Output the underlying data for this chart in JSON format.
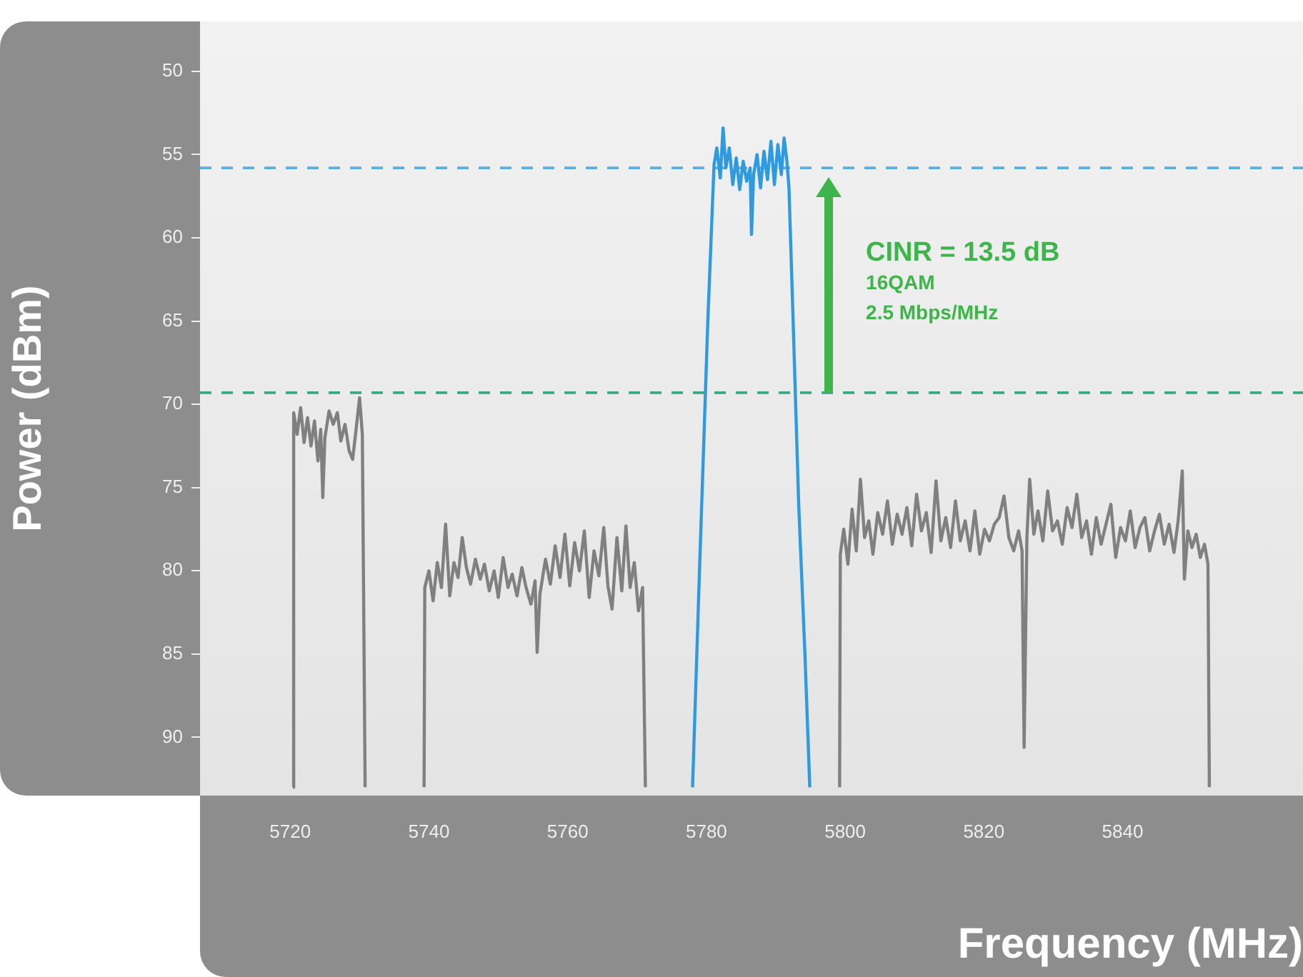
{
  "chart_data": {
    "type": "line",
    "xlabel": "Frequency (MHz)",
    "ylabel": "Power (dBm)",
    "xlim": [
      5707,
      5866
    ],
    "xticks": [
      5720,
      5740,
      5760,
      5780,
      5800,
      5820,
      5840
    ],
    "ylim": [
      93.5,
      47
    ],
    "yticks": [
      50,
      55,
      60,
      65,
      70,
      75,
      80,
      85,
      90
    ],
    "grid": false,
    "legend": false,
    "marker": "none",
    "line_style": "solid",
    "ref_lines": [
      {
        "axis": "y",
        "value": 55.8,
        "color": "#5aaee0",
        "line_style": "dashed",
        "label": null
      },
      {
        "axis": "y",
        "value": 69.3,
        "color": "#3aa882",
        "line_style": "dashed",
        "label": null
      }
    ],
    "annotations": [
      "CINR = 13.5 dB",
      "16QAM",
      "2.5 Mbps/MHz"
    ],
    "series": [
      {
        "color": "#808080",
        "x": [
          5720.4,
          5720.5,
          5721,
          5721.5,
          5722,
          5722.5,
          5723,
          5723.5,
          5724,
          5724.4,
          5724.7,
          5725,
          5725.6,
          5726.2,
          5726.8,
          5727.3,
          5727.9,
          5728.5,
          5729,
          5729.5,
          5730,
          5730.4,
          5730.8,
          5735,
          5739.3,
          5739.4,
          5740,
          5740.6,
          5741.2,
          5741.8,
          5742.4,
          5743,
          5743.6,
          5744.2,
          5744.8,
          5745.4,
          5746,
          5746.7,
          5747.4,
          5748,
          5748.7,
          5749.4,
          5750,
          5750.7,
          5751.4,
          5752,
          5752.7,
          5753.4,
          5754,
          5754.7,
          5755.3,
          5755.6,
          5756,
          5756.8,
          5757.5,
          5758.2,
          5758.9,
          5759.6,
          5760.3,
          5761,
          5761.7,
          5762.4,
          5763.1,
          5763.8,
          5764.5,
          5765.2,
          5765.8,
          5766.4,
          5767.1,
          5767.8,
          5768.4,
          5769,
          5769.6,
          5770.2,
          5770.8,
          5771.2,
          5785,
          5799.2,
          5799.3,
          5799.8,
          5800.4,
          5801,
          5801.6,
          5802.2,
          5802.8,
          5803.4,
          5804,
          5804.7,
          5805.4,
          5806.1,
          5806.8,
          5807.5,
          5808.2,
          5808.9,
          5809.6,
          5810.3,
          5811,
          5811.7,
          5812.4,
          5813.1,
          5813.8,
          5814.5,
          5815.2,
          5815.9,
          5816.6,
          5817.3,
          5818,
          5818.7,
          5819.4,
          5820.1,
          5820.8,
          5821.5,
          5822.2,
          5822.9,
          5823.6,
          5824.3,
          5825,
          5825.5,
          5825.8,
          5826.2,
          5826.6,
          5827.2,
          5827.8,
          5828.5,
          5829.2,
          5829.9,
          5830.6,
          5831.3,
          5832,
          5832.7,
          5833.4,
          5834.1,
          5834.8,
          5835.5,
          5836.2,
          5836.9,
          5837.6,
          5838.3,
          5839,
          5839.7,
          5840.4,
          5841.1,
          5841.8,
          5842.5,
          5843.2,
          5843.9,
          5844.6,
          5845.3,
          5846,
          5846.7,
          5847.4,
          5848,
          5848.6,
          5848.9,
          5849.4,
          5850,
          5850.6,
          5851.2,
          5851.8,
          5852.3,
          5852.5
        ],
        "values": [
          93,
          70.5,
          71.8,
          70.2,
          72.3,
          70.8,
          72.5,
          71,
          73.4,
          71.5,
          75.6,
          72,
          70.4,
          71.2,
          70.5,
          72.2,
          71.2,
          72.8,
          73.3,
          71.5,
          69.6,
          71.8,
          93,
          null,
          93,
          81,
          80,
          81.8,
          79.5,
          81,
          77.2,
          81.5,
          79.5,
          80.4,
          78,
          79.8,
          80.8,
          79.3,
          80.5,
          79.6,
          81.2,
          80,
          81.6,
          79.2,
          81,
          80.2,
          81.5,
          79.8,
          81,
          82,
          80.6,
          84.9,
          81.4,
          79.3,
          80.8,
          78.5,
          80.4,
          77.8,
          80.9,
          78.3,
          80,
          77.6,
          81.6,
          78.8,
          80.3,
          77.4,
          80.9,
          82.3,
          78,
          81.2,
          77.3,
          81,
          79.5,
          82.4,
          81,
          93,
          null,
          93,
          79,
          77.5,
          79.6,
          76.3,
          78.8,
          74.5,
          78,
          77,
          79,
          76.5,
          77.8,
          75.8,
          78.4,
          76.6,
          77.8,
          76.2,
          78.5,
          75.4,
          77.6,
          76.5,
          78.9,
          74.6,
          78.2,
          76.8,
          78.6,
          75.8,
          78.2,
          77,
          78.8,
          76.4,
          79,
          77.5,
          78.2,
          77.2,
          76.8,
          75.5,
          78,
          78.8,
          77.6,
          78.8,
          90.6,
          78,
          74.5,
          77.8,
          76.4,
          78.2,
          75.2,
          77.6,
          77,
          78.4,
          76.2,
          77.4,
          75.4,
          78,
          77,
          79,
          76.8,
          78.4,
          77.2,
          76,
          79.2,
          77.4,
          78.2,
          76.4,
          78.6,
          77.4,
          76.8,
          78.8,
          77.6,
          76.6,
          78.4,
          77.2,
          78.9,
          77,
          74,
          80.5,
          77.6,
          78.6,
          77.8,
          79.2,
          78.4,
          79.6,
          93
        ]
      },
      {
        "color": "#2e9ae0",
        "x": [
          5778,
          5779,
          5780.2,
          5781.1,
          5781.5,
          5782,
          5782.4,
          5782.8,
          5783.3,
          5783.8,
          5784.3,
          5784.8,
          5785.3,
          5785.8,
          5786.3,
          5786.5,
          5786.8,
          5787.3,
          5787.8,
          5788.3,
          5788.8,
          5789.3,
          5789.8,
          5790.3,
          5790.8,
          5791.2,
          5791.6,
          5791.9,
          5792.5,
          5793.3,
          5794.2,
          5794.9
        ],
        "values": [
          93,
          80,
          65,
          55.6,
          54.6,
          56.4,
          53.4,
          55.8,
          54.6,
          56.8,
          55.2,
          57.1,
          55.4,
          56.6,
          55.8,
          59.8,
          56.2,
          55,
          57,
          54.8,
          56.5,
          54.2,
          56.8,
          54.4,
          56.2,
          54,
          55.4,
          57,
          65,
          76,
          85,
          93
        ]
      }
    ]
  }
}
